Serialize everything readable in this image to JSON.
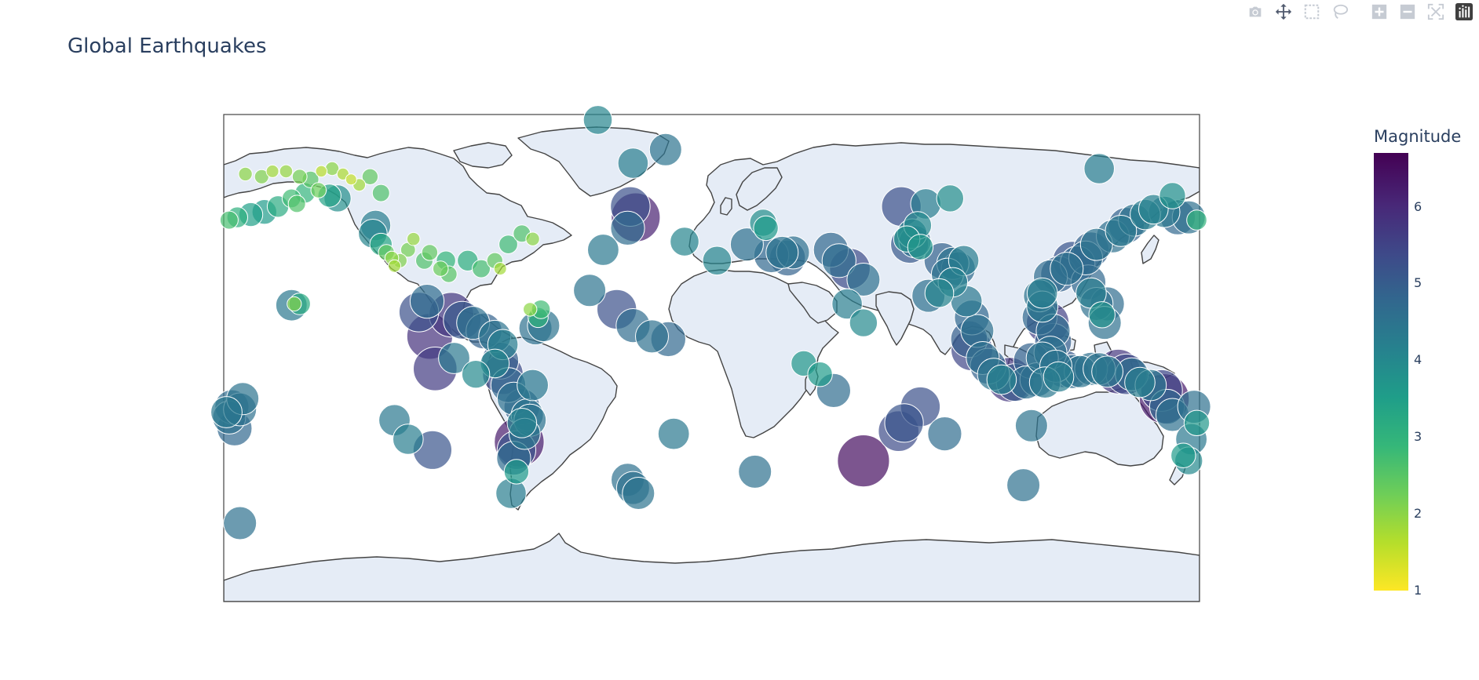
{
  "title": "Global Earthquakes",
  "colorbar": {
    "title": "Magnitude",
    "tick_labels": [
      "1",
      "2",
      "3",
      "4",
      "5",
      "6"
    ],
    "range": [
      1,
      6.7
    ],
    "colorscale": [
      "#fde725",
      "#b5de2b",
      "#6ece58",
      "#35b779",
      "#1f9e89",
      "#26828e",
      "#31688e",
      "#3e4989",
      "#482878",
      "#440154"
    ]
  },
  "map": {
    "projection": "equirectangular",
    "land_color": "#e5ecf6",
    "ocean_color": "#ffffff",
    "coastline_color": "#444444",
    "lon_range": [
      -180,
      180
    ],
    "lat_range": [
      -90,
      90
    ]
  },
  "modebar": {
    "buttons": [
      "camera-icon",
      "pan-icon",
      "box-select-icon",
      "lasso-icon",
      "zoom-in-icon",
      "zoom-out-icon",
      "autoscale-icon",
      "plotly-logo-icon"
    ]
  },
  "chart_data": {
    "type": "scatter-geo",
    "title": "Global Earthquakes",
    "color_variable": "Magnitude",
    "points": [
      {
        "lon": -172,
        "lat": 68,
        "mag": 2.0
      },
      {
        "lon": -166,
        "lat": 67,
        "mag": 2.1
      },
      {
        "lon": -162,
        "lat": 69,
        "mag": 1.8
      },
      {
        "lon": -157,
        "lat": 69,
        "mag": 1.9
      },
      {
        "lon": -152,
        "lat": 67,
        "mag": 2.2
      },
      {
        "lon": -148,
        "lat": 66,
        "mag": 2.5
      },
      {
        "lon": -144,
        "lat": 69,
        "mag": 1.6
      },
      {
        "lon": -140,
        "lat": 70,
        "mag": 2.0
      },
      {
        "lon": -136,
        "lat": 68,
        "mag": 1.7
      },
      {
        "lon": -133,
        "lat": 66,
        "mag": 1.5
      },
      {
        "lon": -130,
        "lat": 64,
        "mag": 1.8
      },
      {
        "lon": -126,
        "lat": 67,
        "mag": 2.4
      },
      {
        "lon": -122,
        "lat": 61,
        "mag": 2.6
      },
      {
        "lon": -150,
        "lat": 61,
        "mag": 3.0
      },
      {
        "lon": -155,
        "lat": 59,
        "mag": 2.8
      },
      {
        "lon": -145,
        "lat": 62,
        "mag": 2.3
      },
      {
        "lon": -141,
        "lat": 60,
        "mag": 3.4
      },
      {
        "lon": -160,
        "lat": 56,
        "mag": 3.2
      },
      {
        "lon": -165,
        "lat": 54,
        "mag": 3.6
      },
      {
        "lon": -170,
        "lat": 53,
        "mag": 3.5
      },
      {
        "lon": -175,
        "lat": 52,
        "mag": 3.1
      },
      {
        "lon": -178,
        "lat": 51,
        "mag": 2.7
      },
      {
        "lon": -153,
        "lat": 57,
        "mag": 2.6
      },
      {
        "lon": -138,
        "lat": 59,
        "mag": 3.9
      },
      {
        "lon": -124,
        "lat": 49,
        "mag": 4.3
      },
      {
        "lon": -125,
        "lat": 46,
        "mag": 4.1
      },
      {
        "lon": -122,
        "lat": 42,
        "mag": 3.3
      },
      {
        "lon": -118,
        "lat": 37,
        "mag": 2.0
      },
      {
        "lon": -117,
        "lat": 34,
        "mag": 1.8
      },
      {
        "lon": -120,
        "lat": 39,
        "mag": 2.4
      },
      {
        "lon": -115,
        "lat": 36,
        "mag": 2.1
      },
      {
        "lon": -112,
        "lat": 40,
        "mag": 2.2
      },
      {
        "lon": -110,
        "lat": 44,
        "mag": 1.9
      },
      {
        "lon": -106,
        "lat": 36,
        "mag": 2.6
      },
      {
        "lon": -104,
        "lat": 39,
        "mag": 2.4
      },
      {
        "lon": -98,
        "lat": 36,
        "mag": 2.9
      },
      {
        "lon": -97,
        "lat": 31,
        "mag": 2.5
      },
      {
        "lon": -90,
        "lat": 36,
        "mag": 3.1
      },
      {
        "lon": -85,
        "lat": 33,
        "mag": 2.7
      },
      {
        "lon": -100,
        "lat": 33,
        "mag": 2.3
      },
      {
        "lon": -80,
        "lat": 36,
        "mag": 2.4
      },
      {
        "lon": -75,
        "lat": 42,
        "mag": 2.8
      },
      {
        "lon": -70,
        "lat": 46,
        "mag": 2.6
      },
      {
        "lon": -66,
        "lat": 44,
        "mag": 2.0
      },
      {
        "lon": -78,
        "lat": 33,
        "mag": 1.8
      },
      {
        "lon": -155,
        "lat": 19.5,
        "mag": 4.4
      },
      {
        "lon": -152,
        "lat": 20,
        "mag": 3.2
      },
      {
        "lon": -154,
        "lat": 20,
        "mag": 2.1
      },
      {
        "lon": -108,
        "lat": 17,
        "mag": 5.3
      },
      {
        "lon": -105,
        "lat": 21,
        "mag": 4.7
      },
      {
        "lon": -96,
        "lat": 16,
        "mag": 5.8
      },
      {
        "lon": -92,
        "lat": 14,
        "mag": 5.1
      },
      {
        "lon": -88,
        "lat": 13,
        "mag": 4.6
      },
      {
        "lon": -84,
        "lat": 10,
        "mag": 4.9
      },
      {
        "lon": -80,
        "lat": 8,
        "mag": 4.5
      },
      {
        "lon": -77,
        "lat": 5,
        "mag": 4.3
      },
      {
        "lon": -104,
        "lat": 8,
        "mag": 5.9
      },
      {
        "lon": -102,
        "lat": -4,
        "mag": 5.7
      },
      {
        "lon": -95,
        "lat": 0,
        "mag": 4.4
      },
      {
        "lon": -78,
        "lat": -1,
        "mag": 5.0
      },
      {
        "lon": -77,
        "lat": -6,
        "mag": 5.4
      },
      {
        "lon": -75,
        "lat": -10,
        "mag": 4.8
      },
      {
        "lon": -73,
        "lat": -15,
        "mag": 4.6
      },
      {
        "lon": -70,
        "lat": -18,
        "mag": 4.9
      },
      {
        "lon": -68,
        "lat": -21,
        "mag": 4.5
      },
      {
        "lon": -70,
        "lat": -24,
        "mag": 4.2
      },
      {
        "lon": -69,
        "lat": -28,
        "mag": 4.4
      },
      {
        "lon": -71,
        "lat": -31,
        "mag": 6.3
      },
      {
        "lon": -72,
        "lat": -34,
        "mag": 5.2
      },
      {
        "lon": -73,
        "lat": -37,
        "mag": 4.7
      },
      {
        "lon": -72,
        "lat": -42,
        "mag": 3.6
      },
      {
        "lon": -74,
        "lat": -50,
        "mag": 4.3
      },
      {
        "lon": -67,
        "lat": -23,
        "mag": 4.5
      },
      {
        "lon": -66,
        "lat": -10,
        "mag": 4.4
      },
      {
        "lon": -64,
        "lat": 15,
        "mag": 3.0
      },
      {
        "lon": -63,
        "lat": 18,
        "mag": 2.8
      },
      {
        "lon": -67,
        "lat": 18,
        "mag": 2.0
      },
      {
        "lon": -65,
        "lat": 11,
        "mag": 4.6
      },
      {
        "lon": -62,
        "lat": 12,
        "mag": 4.5
      },
      {
        "lon": -80,
        "lat": -2,
        "mag": 4.1
      },
      {
        "lon": -87,
        "lat": -6,
        "mag": 4.0
      },
      {
        "lon": -112,
        "lat": -30,
        "mag": 4.3
      },
      {
        "lon": -103,
        "lat": -34,
        "mag": 5.2
      },
      {
        "lon": -117,
        "lat": -23,
        "mag": 4.4
      },
      {
        "lon": -173,
        "lat": -15,
        "mag": 4.5
      },
      {
        "lon": -177,
        "lat": -18,
        "mag": 4.7
      },
      {
        "lon": -178,
        "lat": -22,
        "mag": 4.6
      },
      {
        "lon": -176,
        "lat": -26,
        "mag": 4.8
      },
      {
        "lon": -179,
        "lat": -20,
        "mag": 4.4
      },
      {
        "lon": -174,
        "lat": -19,
        "mag": 4.6
      },
      {
        "lon": -174,
        "lat": -61,
        "mag": 4.6
      },
      {
        "lon": -42,
        "lat": 88,
        "mag": 4.1
      },
      {
        "lon": -17,
        "lat": 77,
        "mag": 4.5
      },
      {
        "lon": -29,
        "lat": 72,
        "mag": 4.3
      },
      {
        "lon": -30,
        "lat": 56,
        "mag": 5.3
      },
      {
        "lon": -28,
        "lat": 52,
        "mag": 6.2
      },
      {
        "lon": -31,
        "lat": 48,
        "mag": 4.7
      },
      {
        "lon": -40,
        "lat": 40,
        "mag": 4.4
      },
      {
        "lon": -10,
        "lat": 43,
        "mag": 4.1
      },
      {
        "lon": -45,
        "lat": 25,
        "mag": 4.5
      },
      {
        "lon": -35,
        "lat": 18,
        "mag": 5.3
      },
      {
        "lon": -29,
        "lat": 12,
        "mag": 4.7
      },
      {
        "lon": -22,
        "lat": 8,
        "mag": 4.6
      },
      {
        "lon": -16,
        "lat": 7,
        "mag": 4.8
      },
      {
        "lon": -14,
        "lat": -28,
        "mag": 4.4
      },
      {
        "lon": -31,
        "lat": -45,
        "mag": 4.6
      },
      {
        "lon": -29,
        "lat": -48,
        "mag": 4.6
      },
      {
        "lon": -27,
        "lat": -50,
        "mag": 4.5
      },
      {
        "lon": 2,
        "lat": 36,
        "mag": 4.1
      },
      {
        "lon": 13,
        "lat": 42,
        "mag": 4.6
      },
      {
        "lon": 22,
        "lat": 38,
        "mag": 4.8
      },
      {
        "lon": 26,
        "lat": 39,
        "mag": 4.5
      },
      {
        "lon": 28,
        "lat": 37,
        "mag": 4.9
      },
      {
        "lon": 30,
        "lat": 39,
        "mag": 4.6
      },
      {
        "lon": 19,
        "lat": 50,
        "mag": 3.9
      },
      {
        "lon": 20,
        "lat": 48,
        "mag": 3.6
      },
      {
        "lon": 44,
        "lat": 40,
        "mag": 4.8
      },
      {
        "lon": 47,
        "lat": 36,
        "mag": 4.7
      },
      {
        "lon": 51,
        "lat": 33,
        "mag": 5.4
      },
      {
        "lon": 56,
        "lat": 29,
        "mag": 4.6
      },
      {
        "lon": 50,
        "lat": 20,
        "mag": 4.3
      },
      {
        "lon": 56,
        "lat": 13,
        "mag": 4.0
      },
      {
        "lon": 34,
        "lat": -2,
        "mag": 3.7
      },
      {
        "lon": 40,
        "lat": -6,
        "mag": 3.6
      },
      {
        "lon": 45,
        "lat": -12,
        "mag": 4.7
      },
      {
        "lon": 56,
        "lat": -38,
        "mag": 6.5
      },
      {
        "lon": 69,
        "lat": -27,
        "mag": 5.4
      },
      {
        "lon": 71,
        "lat": -24,
        "mag": 5.2
      },
      {
        "lon": 77,
        "lat": -18,
        "mag": 5.3
      },
      {
        "lon": 86,
        "lat": -28,
        "mag": 4.7
      },
      {
        "lon": 16,
        "lat": -42,
        "mag": 4.6
      },
      {
        "lon": 70,
        "lat": 56,
        "mag": 5.3
      },
      {
        "lon": 79,
        "lat": 57,
        "mag": 4.3
      },
      {
        "lon": 88,
        "lat": 59,
        "mag": 3.9
      },
      {
        "lon": 76,
        "lat": 49,
        "mag": 4.0
      },
      {
        "lon": 72,
        "lat": 44,
        "mag": 3.8
      },
      {
        "lon": 74,
        "lat": 46,
        "mag": 4.2
      },
      {
        "lon": 73,
        "lat": 42,
        "mag": 5.1
      },
      {
        "lon": 75,
        "lat": 43,
        "mag": 4.5
      },
      {
        "lon": 77,
        "lat": 41,
        "mag": 3.7
      },
      {
        "lon": 85,
        "lat": 36,
        "mag": 4.9
      },
      {
        "lon": 89,
        "lat": 35,
        "mag": 4.5
      },
      {
        "lon": 91,
        "lat": 33,
        "mag": 4.7
      },
      {
        "lon": 93,
        "lat": 36,
        "mag": 4.3
      },
      {
        "lon": 87,
        "lat": 31,
        "mag": 4.5
      },
      {
        "lon": 89,
        "lat": 28,
        "mag": 4.2
      },
      {
        "lon": 80,
        "lat": 23,
        "mag": 4.6
      },
      {
        "lon": 84,
        "lat": 24,
        "mag": 4.1
      },
      {
        "lon": 94,
        "lat": 21,
        "mag": 4.4
      },
      {
        "lon": 96,
        "lat": 15,
        "mag": 4.8
      },
      {
        "lon": 98,
        "lat": 10,
        "mag": 4.6
      },
      {
        "lon": 95,
        "lat": 7,
        "mag": 5.0
      },
      {
        "lon": 96,
        "lat": 3,
        "mag": 5.5
      },
      {
        "lon": 100,
        "lat": 0,
        "mag": 4.6
      },
      {
        "lon": 102,
        "lat": -3,
        "mag": 4.9
      },
      {
        "lon": 104,
        "lat": -6,
        "mag": 4.5
      },
      {
        "lon": 107,
        "lat": -8,
        "mag": 4.2
      },
      {
        "lon": 112,
        "lat": -9,
        "mag": 5.1
      },
      {
        "lon": 116,
        "lat": -9,
        "mag": 4.6
      },
      {
        "lon": 120,
        "lat": -8,
        "mag": 4.7
      },
      {
        "lon": 123,
        "lat": -9,
        "mag": 4.4
      },
      {
        "lon": 110,
        "lat": -8,
        "mag": 5.8
      },
      {
        "lon": 118,
        "lat": -1,
        "mag": 4.9
      },
      {
        "lon": 122,
        "lat": 0,
        "mag": 4.5
      },
      {
        "lon": 125,
        "lat": 2,
        "mag": 4.6
      },
      {
        "lon": 126,
        "lat": 6,
        "mag": 5.0
      },
      {
        "lon": 126,
        "lat": 10,
        "mag": 4.7
      },
      {
        "lon": 124,
        "lat": 13,
        "mag": 5.6
      },
      {
        "lon": 121,
        "lat": 15,
        "mag": 4.8
      },
      {
        "lon": 122,
        "lat": 19,
        "mag": 4.4
      },
      {
        "lon": 121,
        "lat": 23,
        "mag": 4.5
      },
      {
        "lon": 122,
        "lat": 24,
        "mag": 4.3
      },
      {
        "lon": 125,
        "lat": 30,
        "mag": 4.7
      },
      {
        "lon": 128,
        "lat": 31,
        "mag": 4.9
      },
      {
        "lon": 131,
        "lat": 33,
        "mag": 4.6
      },
      {
        "lon": 133,
        "lat": 36,
        "mag": 5.2
      },
      {
        "lon": 135,
        "lat": 35,
        "mag": 4.8
      },
      {
        "lon": 138,
        "lat": 37,
        "mag": 4.7
      },
      {
        "lon": 140,
        "lat": 40,
        "mag": 4.9
      },
      {
        "lon": 142,
        "lat": 42,
        "mag": 4.5
      },
      {
        "lon": 139,
        "lat": 28,
        "mag": 4.8
      },
      {
        "lon": 140,
        "lat": 24,
        "mag": 4.3
      },
      {
        "lon": 142,
        "lat": 20,
        "mag": 4.6
      },
      {
        "lon": 144,
        "lat": 16,
        "mag": 3.8
      },
      {
        "lon": 145,
        "lat": 13,
        "mag": 4.6
      },
      {
        "lon": 146,
        "lat": 20,
        "mag": 4.7
      },
      {
        "lon": 148,
        "lat": 45,
        "mag": 4.6
      },
      {
        "lon": 151,
        "lat": 47,
        "mag": 4.4
      },
      {
        "lon": 153,
        "lat": 49,
        "mag": 4.9
      },
      {
        "lon": 156,
        "lat": 51,
        "mag": 4.5
      },
      {
        "lon": 160,
        "lat": 53,
        "mag": 4.3
      },
      {
        "lon": 163,
        "lat": 55,
        "mag": 4.2
      },
      {
        "lon": 167,
        "lat": 54,
        "mag": 4.4
      },
      {
        "lon": 172,
        "lat": 52,
        "mag": 4.8
      },
      {
        "lon": 176,
        "lat": 52,
        "mag": 4.6
      },
      {
        "lon": 179,
        "lat": 51,
        "mag": 3.0
      },
      {
        "lon": 170,
        "lat": 60,
        "mag": 3.8
      },
      {
        "lon": 143,
        "lat": 70,
        "mag": 4.3
      },
      {
        "lon": 130,
        "lat": -4,
        "mag": 5.1
      },
      {
        "lon": 133,
        "lat": -5,
        "mag": 4.7
      },
      {
        "lon": 136,
        "lat": -5,
        "mag": 4.5
      },
      {
        "lon": 140,
        "lat": -4,
        "mag": 4.6
      },
      {
        "lon": 143,
        "lat": -4,
        "mag": 4.5
      },
      {
        "lon": 146,
        "lat": -5,
        "mag": 4.4
      },
      {
        "lon": 150,
        "lat": -5,
        "mag": 5.8
      },
      {
        "lon": 153,
        "lat": -6,
        "mag": 5.4
      },
      {
        "lon": 155,
        "lat": -6,
        "mag": 4.6
      },
      {
        "lon": 158,
        "lat": -9,
        "mag": 4.3
      },
      {
        "lon": 162,
        "lat": -10,
        "mag": 4.4
      },
      {
        "lon": 166,
        "lat": -12,
        "mag": 5.5
      },
      {
        "lon": 167,
        "lat": -15,
        "mag": 6.3
      },
      {
        "lon": 168,
        "lat": -18,
        "mag": 4.8
      },
      {
        "lon": 170,
        "lat": -21,
        "mag": 4.6
      },
      {
        "lon": 178,
        "lat": -18,
        "mag": 4.6
      },
      {
        "lon": 179,
        "lat": -24,
        "mag": 3.7
      },
      {
        "lon": 177,
        "lat": -30,
        "mag": 4.4
      },
      {
        "lon": 174,
        "lat": -36,
        "mag": 3.6
      },
      {
        "lon": 176,
        "lat": -38,
        "mag": 4.0
      },
      {
        "lon": 118,
        "lat": -25,
        "mag": 4.5
      },
      {
        "lon": 115,
        "lat": -47,
        "mag": 4.6
      },
      {
        "lon": 128,
        "lat": -7,
        "mag": 4.3
      },
      {
        "lon": 127,
        "lat": -3,
        "mag": 4.5
      }
    ]
  }
}
